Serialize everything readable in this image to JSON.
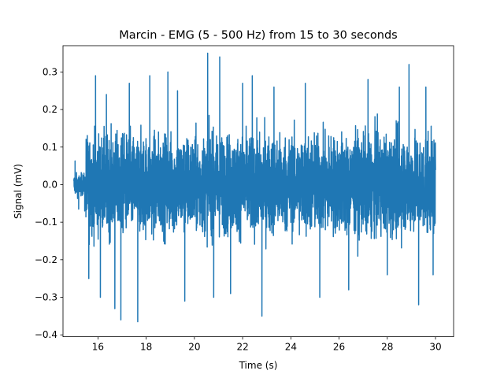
{
  "chart_data": {
    "type": "line",
    "title": "Marcin - EMG (5 - 500 Hz) from 15 to 30 seconds",
    "xlabel": "Time (s)",
    "ylabel": "Signal (mV)",
    "xlim": [
      14.55,
      30.75
    ],
    "ylim": [
      -0.405,
      0.37
    ],
    "x_ticks": [
      16,
      18,
      20,
      22,
      24,
      26,
      28,
      30
    ],
    "y_ticks": [
      -0.4,
      -0.3,
      -0.2,
      -0.1,
      0.0,
      0.1,
      0.2,
      0.3
    ],
    "x_tick_labels": [
      "16",
      "18",
      "20",
      "22",
      "24",
      "26",
      "28",
      "30"
    ],
    "y_tick_labels": [
      "−0.4",
      "−0.3",
      "−0.2",
      "−0.1",
      "0.0",
      "0.1",
      "0.2",
      "0.3"
    ],
    "grid": false,
    "series": [
      {
        "color": "#1f77b4",
        "x_range": [
          15.0,
          30.0
        ],
        "segments": [
          {
            "t": [
              15.0,
              15.5
            ],
            "amplitude": 0.04,
            "peaks": [
              {
                "x": 15.05,
                "y": 0.063
              },
              {
                "x": 15.2,
                "y": -0.065
              },
              {
                "x": 15.45,
                "y": -0.07
              }
            ]
          },
          {
            "t": [
              15.5,
              30.0
            ],
            "amplitude": 0.18,
            "peaks": [
              {
                "x": 15.62,
                "y": -0.25
              },
              {
                "x": 15.9,
                "y": 0.29
              },
              {
                "x": 16.1,
                "y": -0.3
              },
              {
                "x": 16.35,
                "y": 0.24
              },
              {
                "x": 16.7,
                "y": -0.33
              },
              {
                "x": 16.95,
                "y": -0.36
              },
              {
                "x": 17.3,
                "y": 0.27
              },
              {
                "x": 17.65,
                "y": -0.365
              },
              {
                "x": 18.15,
                "y": 0.29
              },
              {
                "x": 18.9,
                "y": 0.3
              },
              {
                "x": 19.3,
                "y": 0.25
              },
              {
                "x": 19.6,
                "y": -0.31
              },
              {
                "x": 20.55,
                "y": 0.35
              },
              {
                "x": 20.8,
                "y": -0.3
              },
              {
                "x": 21.05,
                "y": 0.34
              },
              {
                "x": 21.5,
                "y": -0.29
              },
              {
                "x": 22.0,
                "y": 0.27
              },
              {
                "x": 22.4,
                "y": 0.29
              },
              {
                "x": 22.8,
                "y": -0.35
              },
              {
                "x": 23.3,
                "y": 0.26
              },
              {
                "x": 24.6,
                "y": 0.27
              },
              {
                "x": 25.2,
                "y": -0.3
              },
              {
                "x": 26.4,
                "y": -0.28
              },
              {
                "x": 27.2,
                "y": 0.28
              },
              {
                "x": 28.0,
                "y": -0.24
              },
              {
                "x": 28.5,
                "y": 0.26
              },
              {
                "x": 28.9,
                "y": 0.32
              },
              {
                "x": 29.3,
                "y": -0.32
              },
              {
                "x": 29.6,
                "y": 0.26
              },
              {
                "x": 29.9,
                "y": -0.24
              }
            ]
          }
        ]
      }
    ]
  }
}
